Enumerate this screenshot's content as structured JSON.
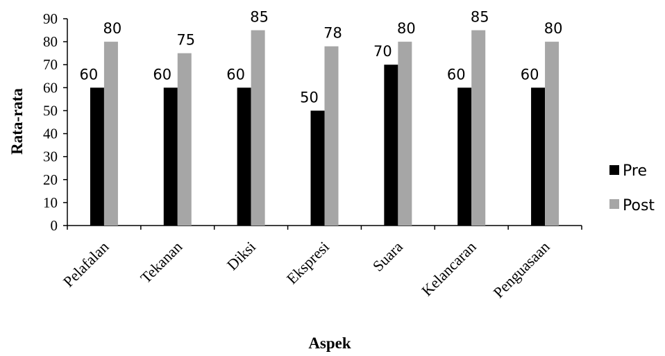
{
  "chart_data": {
    "type": "bar",
    "title": "",
    "xlabel": "Aspek",
    "ylabel": "Rata-rata",
    "ylim": [
      0,
      90
    ],
    "yticks": [
      0,
      10,
      20,
      30,
      40,
      50,
      60,
      70,
      80,
      90
    ],
    "categories": [
      "Pelafalan",
      "Tekanan",
      "Diksi",
      "Ekspresi",
      "Suara",
      "Kelancaran",
      "Penguasaan"
    ],
    "series": [
      {
        "name": "Pre",
        "color": "#000000",
        "values": [
          60,
          60,
          60,
          50,
          70,
          60,
          60
        ]
      },
      {
        "name": "Post",
        "color": "#a6a6a6",
        "values": [
          80,
          75,
          85,
          78,
          80,
          85,
          80
        ]
      }
    ],
    "legend_position": "right",
    "grid": false
  }
}
